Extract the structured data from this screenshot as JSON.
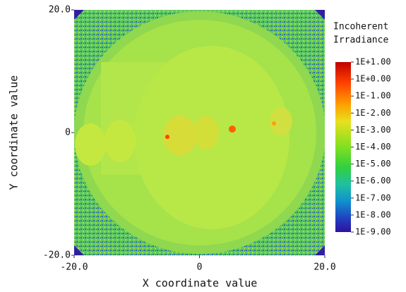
{
  "chart_data": {
    "type": "heatmap",
    "x_label": "X coordinate value",
    "y_label": "Y coordinate value",
    "xlim": [
      -20,
      20
    ],
    "xticks": [
      {
        "value": -20,
        "label": "-20.0"
      },
      0,
      {
        "value": 20,
        "label": "20.0"
      }
    ],
    "ylim": [
      -20,
      20
    ],
    "yticks": [
      {
        "value": -20,
        "label": "-20.0"
      },
      0,
      {
        "value": 20,
        "label": "20.0"
      }
    ],
    "colorbar": {
      "title": [
        "Incoherent",
        "Irradiance"
      ],
      "log_scale": true,
      "clim": [
        1e-09,
        10
      ],
      "ticks": [
        {
          "value": 10,
          "label": "1E+1.00"
        },
        {
          "value": 1,
          "label": "1E+0.00"
        },
        {
          "value": 0.1,
          "label": "1E-1.00"
        },
        {
          "value": 0.01,
          "label": "1E-2.00"
        },
        {
          "value": 0.001,
          "label": "1E-3.00"
        },
        {
          "value": 0.0001,
          "label": "1E-4.00"
        },
        {
          "value": 1e-05,
          "label": "1E-5.00"
        },
        {
          "value": 1e-06,
          "label": "1E-6.00"
        },
        {
          "value": 1e-07,
          "label": "1E-7.00"
        },
        {
          "value": 1e-08,
          "label": "1E-8.00"
        },
        {
          "value": 1e-09,
          "label": "1E-9.00"
        }
      ]
    }
  }
}
